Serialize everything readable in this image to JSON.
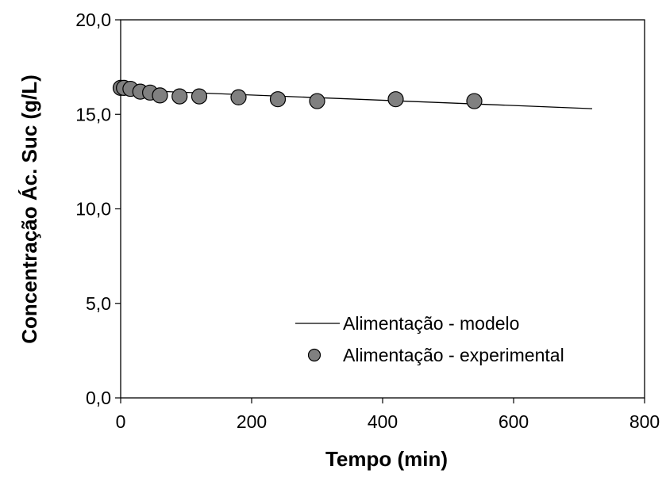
{
  "chart_data": {
    "type": "scatter",
    "xlabel": "Tempo (min)",
    "ylabel": "Concentração Ác. Suc (g/L)",
    "xlim": [
      0,
      800
    ],
    "ylim": [
      0,
      20
    ],
    "x_ticks": [
      0,
      200,
      400,
      600,
      800
    ],
    "y_ticks": [
      0,
      5,
      10,
      15,
      20
    ],
    "x_tick_labels": [
      "0",
      "200",
      "400",
      "600",
      "800"
    ],
    "y_tick_labels": [
      "0,0",
      "5,0",
      "10,0",
      "15,0",
      "20,0"
    ],
    "grid": false,
    "legend_position": "bottom-right",
    "series": [
      {
        "name": "Alimentação - modelo",
        "kind": "line",
        "color": "#000000",
        "x": [
          0,
          720
        ],
        "y": [
          16.3,
          15.3
        ]
      },
      {
        "name": "Alimentação - experimental",
        "kind": "scatter",
        "color": "#808080",
        "x": [
          0,
          5,
          15,
          30,
          45,
          60,
          90,
          120,
          180,
          240,
          300,
          420,
          540
        ],
        "y": [
          16.4,
          16.4,
          16.35,
          16.2,
          16.15,
          16.0,
          15.95,
          15.95,
          15.9,
          15.8,
          15.7,
          15.8,
          15.7
        ]
      }
    ]
  }
}
